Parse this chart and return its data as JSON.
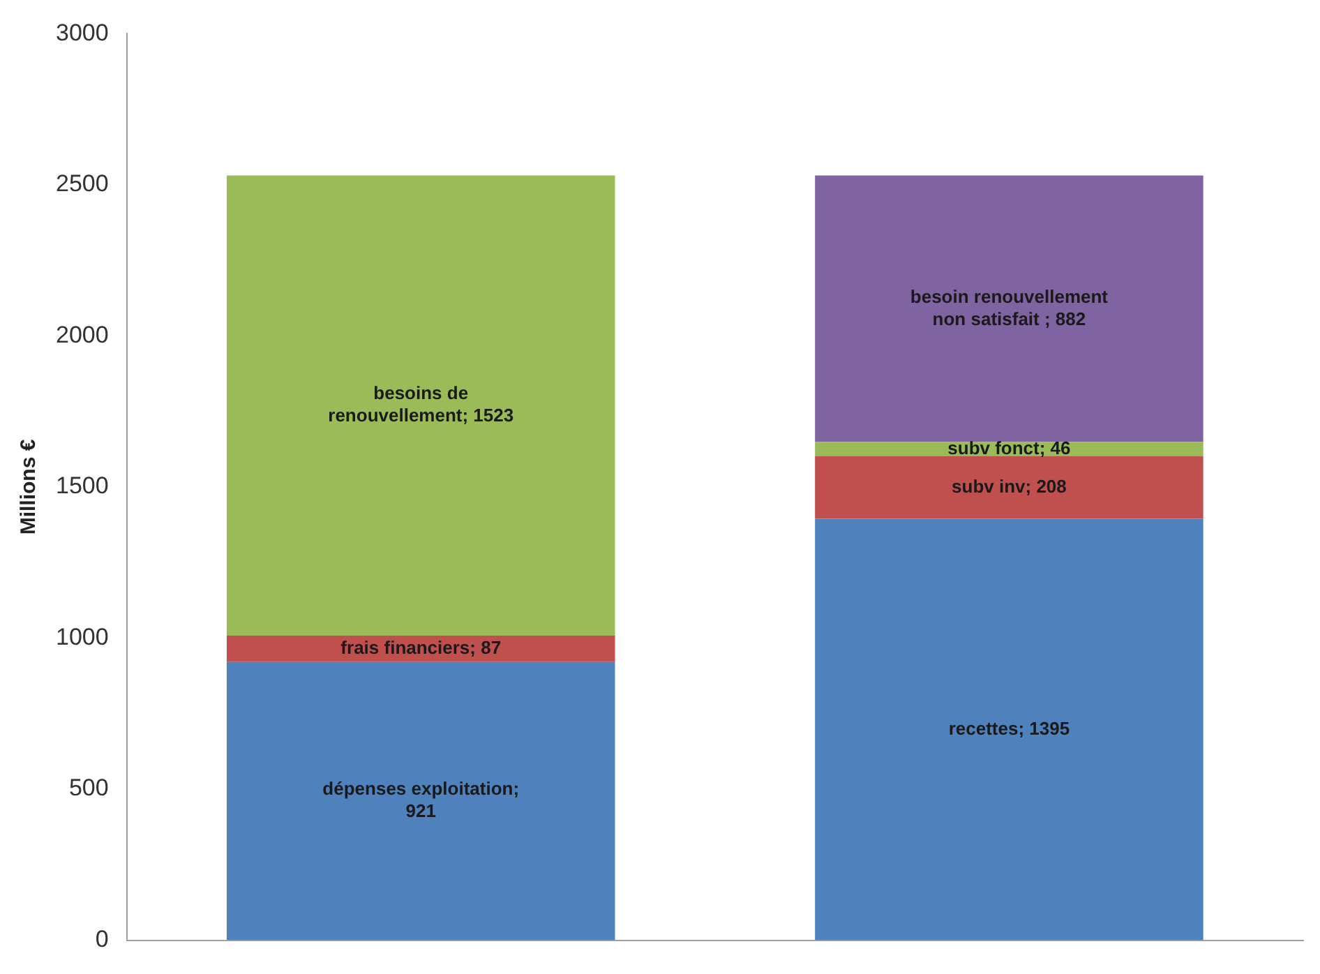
{
  "chart_data": {
    "type": "bar",
    "stacked": true,
    "ylabel": "Millions €",
    "categories": [
      null,
      null
    ],
    "ylim": [
      0,
      3000
    ],
    "yticks": [
      0,
      500,
      1000,
      1500,
      2000,
      2500,
      3000
    ],
    "grid": false,
    "legend": false,
    "series": [
      {
        "color": "#4f81bd",
        "values": [
          921,
          1395
        ],
        "value_labels": [
          "dépenses exploitation; 921",
          "recettes; 1395"
        ]
      },
      {
        "color": "#c0504d",
        "values": [
          87,
          208
        ],
        "value_labels": [
          "frais financiers; 87",
          "subv inv; 208"
        ]
      },
      {
        "color": "#9bbb59",
        "values": [
          1523,
          46
        ],
        "value_labels": [
          "besoins de renouvellement; 1523",
          "subv fonct; 46"
        ]
      },
      {
        "color": "#8064a2",
        "values": [
          null,
          882
        ],
        "value_labels": [
          null,
          "besoin renouvellement non satisfait ; 882"
        ]
      }
    ]
  }
}
